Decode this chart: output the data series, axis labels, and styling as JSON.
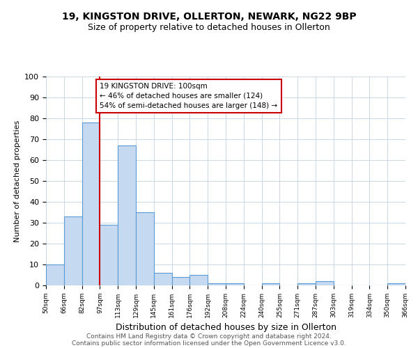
{
  "title1": "19, KINGSTON DRIVE, OLLERTON, NEWARK, NG22 9BP",
  "title2": "Size of property relative to detached houses in Ollerton",
  "xlabel": "Distribution of detached houses by size in Ollerton",
  "ylabel": "Number of detached properties",
  "bin_labels": [
    "50sqm",
    "66sqm",
    "82sqm",
    "97sqm",
    "113sqm",
    "129sqm",
    "145sqm",
    "161sqm",
    "176sqm",
    "192sqm",
    "208sqm",
    "224sqm",
    "240sqm",
    "255sqm",
    "271sqm",
    "287sqm",
    "303sqm",
    "319sqm",
    "334sqm",
    "350sqm",
    "366sqm"
  ],
  "bar_heights": [
    10,
    33,
    78,
    29,
    67,
    35,
    6,
    4,
    5,
    1,
    1,
    0,
    1,
    0,
    1,
    2,
    0,
    0,
    0,
    1
  ],
  "bar_color": "#c5d9f0",
  "bar_edge_color": "#5b9bd5",
  "vline_x": 3,
  "vline_color": "#cc0000",
  "annotation_text": "19 KINGSTON DRIVE: 100sqm\n← 46% of detached houses are smaller (124)\n54% of semi-detached houses are larger (148) →",
  "annotation_box_color": "#ffffff",
  "annotation_box_edge": "#cc0000",
  "ylim": [
    0,
    100
  ],
  "footnote1": "Contains HM Land Registry data © Crown copyright and database right 2024.",
  "footnote2": "Contains public sector information licensed under the Open Government Licence v3.0.",
  "background_color": "#ffffff",
  "grid_color": "#c8d8e8"
}
